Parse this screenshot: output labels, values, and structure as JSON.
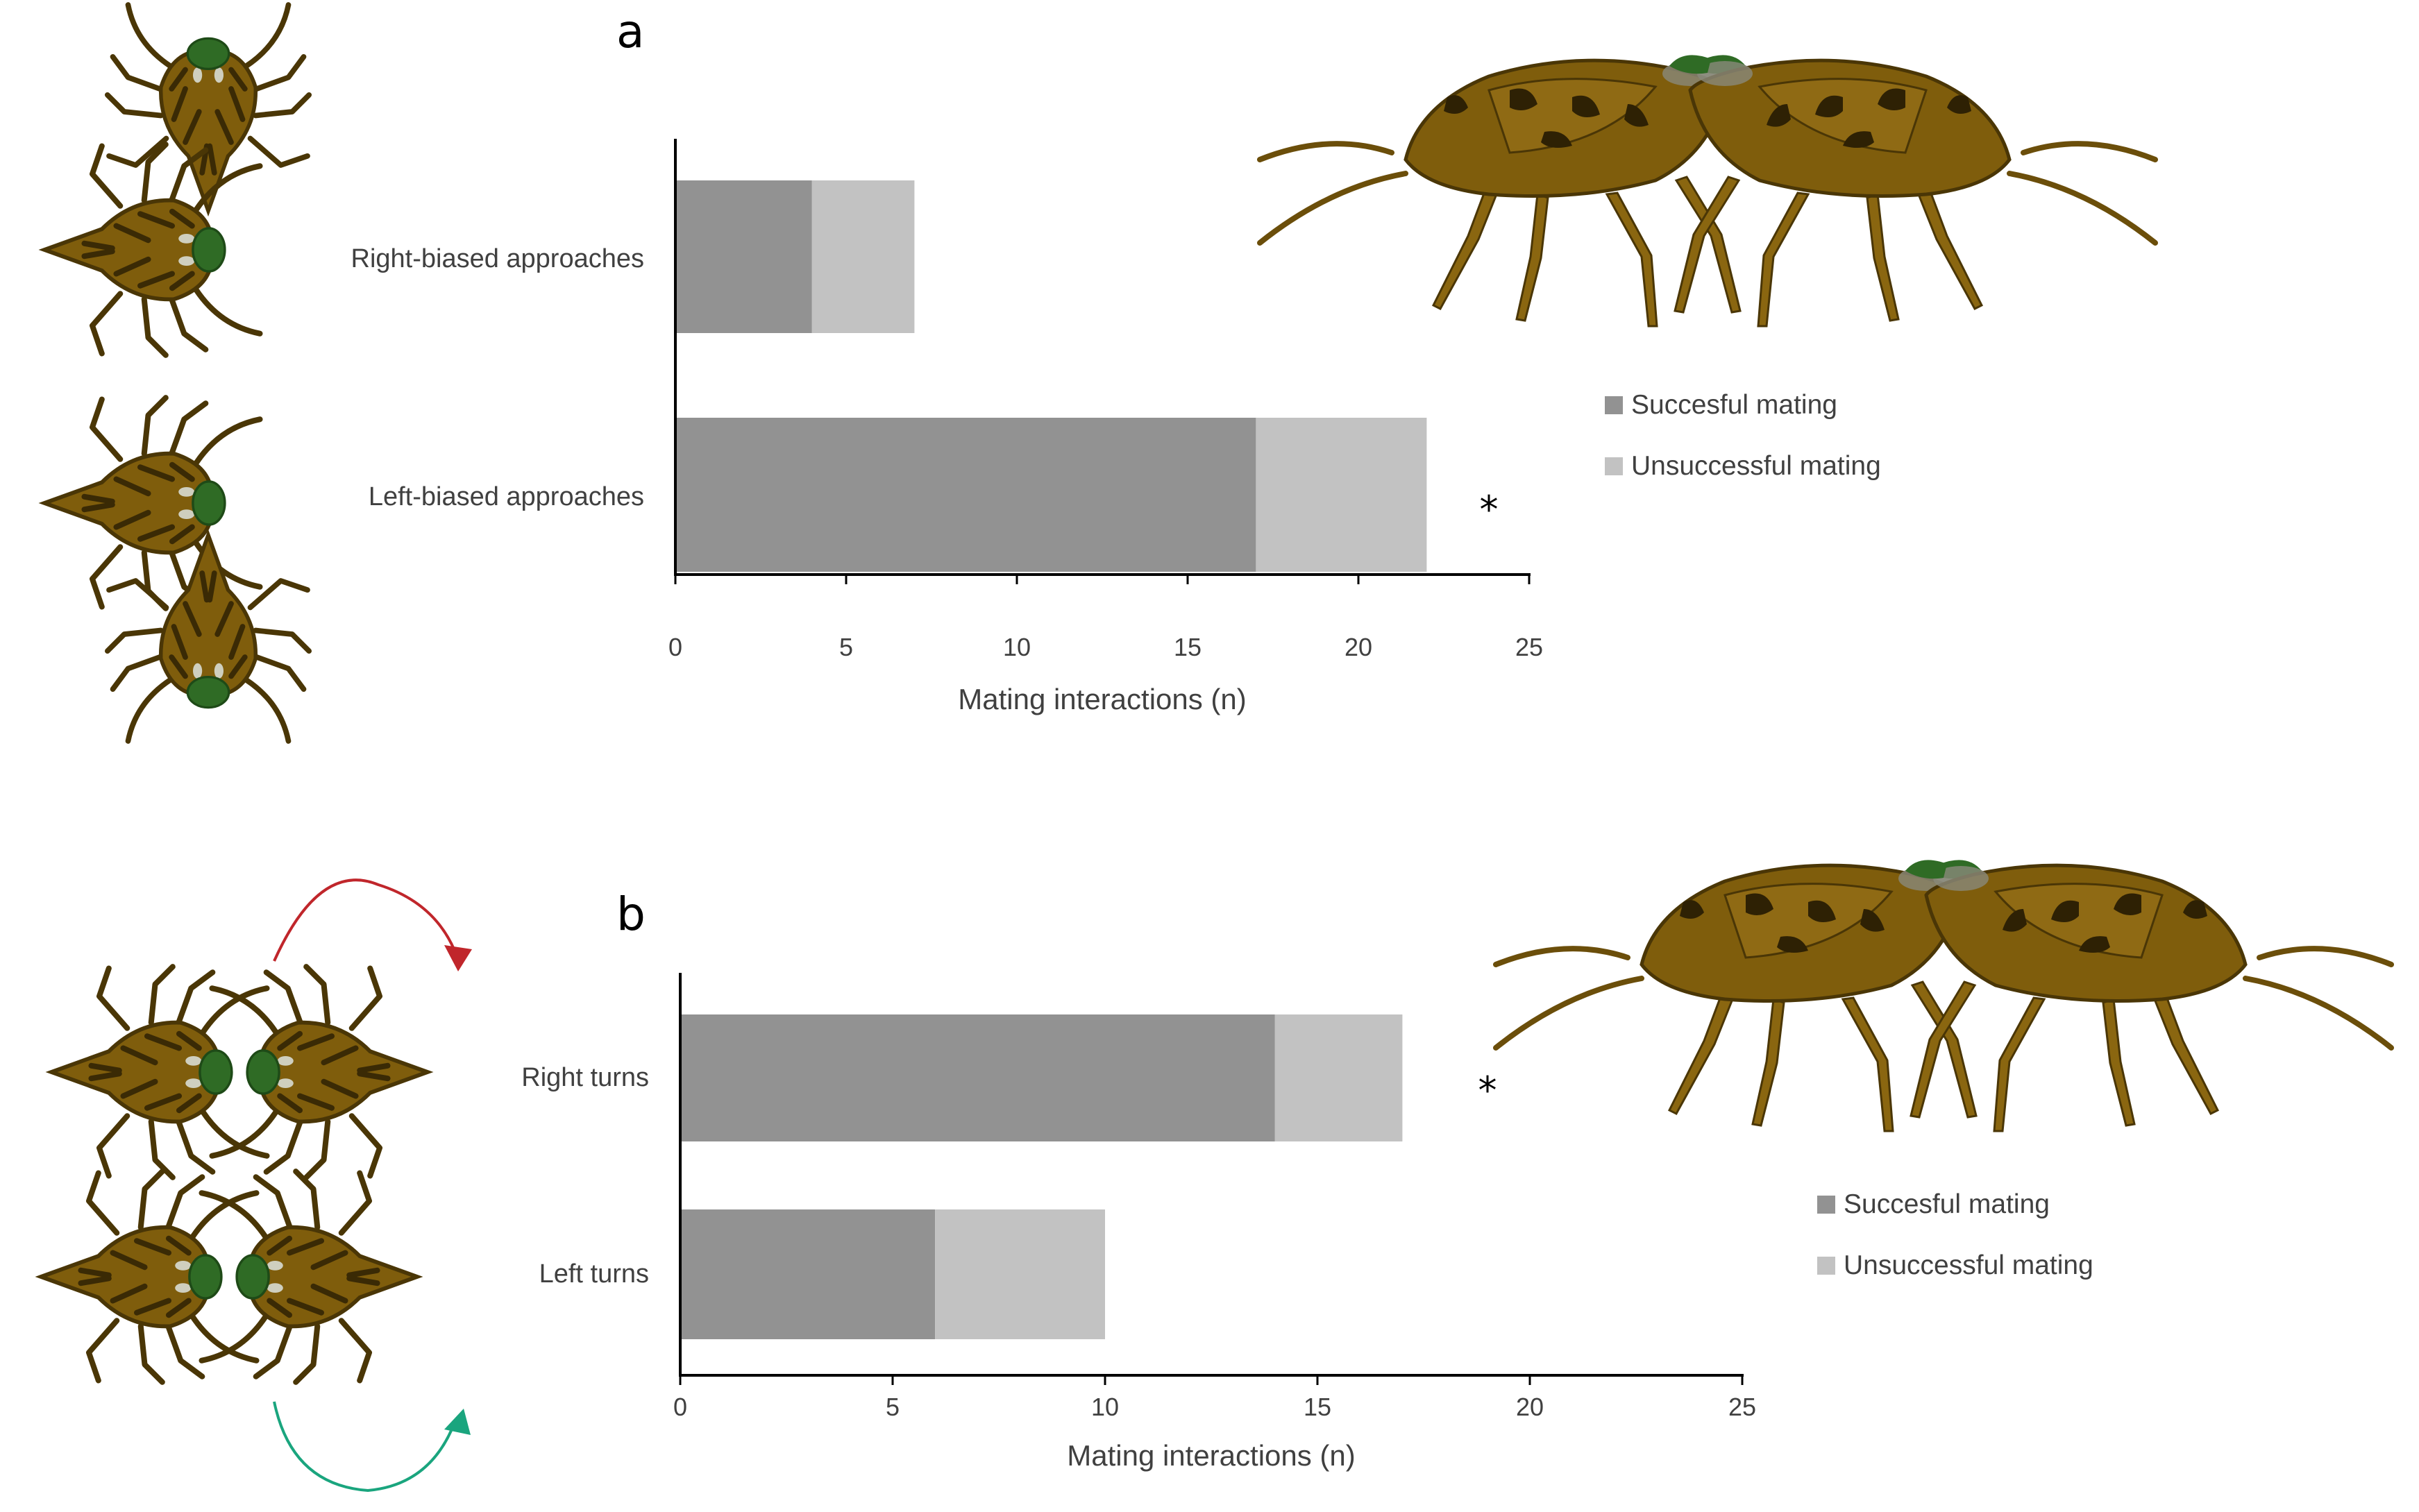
{
  "colors": {
    "successful": "#929292",
    "unsuccessful": "#c2c2c2",
    "bug_body": "#7f5d0c",
    "bug_outline": "#4a3606",
    "bug_mark": "#3a2a05",
    "bug_head": "#2f6b25",
    "arrow_right": "#c0262b",
    "arrow_left": "#1aa57e"
  },
  "icons": [
    "bug-top-view-icon",
    "mating-bugs-side-view-icon",
    "curved-arrow-icon"
  ],
  "chart_data": [
    {
      "type": "bar",
      "orientation": "horizontal",
      "stacked": true,
      "panel_label": "a",
      "categories": [
        "Right-biased approaches",
        "Left-biased approaches"
      ],
      "series": [
        {
          "name": "Succesful mating",
          "values": [
            4,
            17
          ]
        },
        {
          "name": "Unsuccessful mating",
          "values": [
            3,
            5
          ]
        }
      ],
      "significance": [
        "",
        "*"
      ],
      "xlabel": "Mating interactions (n)",
      "xlim": [
        0,
        25
      ],
      "xticks": [
        "0",
        "5",
        "10",
        "15",
        "20",
        "25"
      ],
      "legend_position": "right",
      "grid": false
    },
    {
      "type": "bar",
      "orientation": "horizontal",
      "stacked": true,
      "panel_label": "b",
      "categories": [
        "Right turns",
        "Left turns"
      ],
      "series": [
        {
          "name": "Succesful mating",
          "values": [
            14,
            6
          ]
        },
        {
          "name": "Unsuccessful mating",
          "values": [
            3,
            4
          ]
        }
      ],
      "significance": [
        "*",
        ""
      ],
      "xlabel": "Mating interactions (n)",
      "xlim": [
        0,
        25
      ],
      "xticks": [
        "0",
        "5",
        "10",
        "15",
        "20",
        "25"
      ],
      "legend_position": "right",
      "grid": false
    }
  ]
}
